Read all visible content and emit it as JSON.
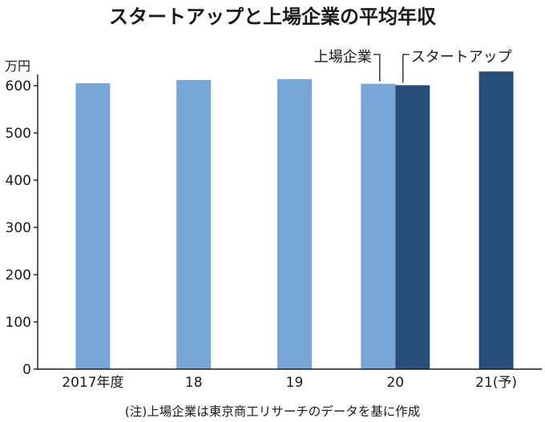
{
  "chart_data": {
    "type": "bar",
    "title": "スタートアップと上場企業の平均年収",
    "unit": "万円",
    "categories": [
      "2017年度",
      "18",
      "19",
      "20",
      "21(予)"
    ],
    "ylim": [
      0,
      600
    ],
    "yticks": [
      0,
      100,
      200,
      300,
      400,
      500,
      600
    ],
    "grid": false,
    "series": [
      {
        "name": "上場企業",
        "color": "#78a6d6",
        "values": [
          605,
          612,
          614,
          604,
          null
        ]
      },
      {
        "name": "スタートアップ",
        "color": "#264e78",
        "values": [
          null,
          null,
          null,
          601,
          630
        ]
      }
    ],
    "note": "(注)上場企業は東京商工リサーチのデータを基に作成"
  }
}
